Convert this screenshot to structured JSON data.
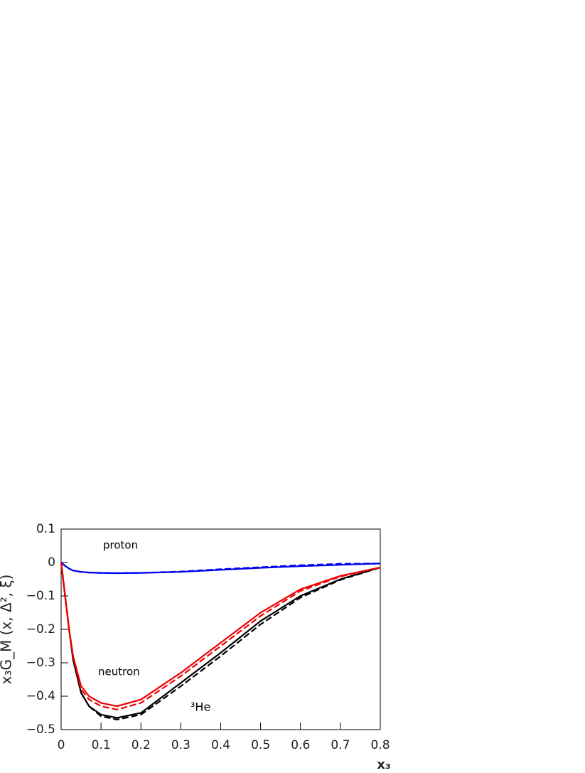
{
  "chart_data": {
    "type": "line",
    "x_label": "x₃",
    "y_label": "x₃G_M (x, Δ², ξ)",
    "annotations": [
      "proton",
      "neutron",
      "³He"
    ],
    "x": [
      0,
      0.01,
      0.02,
      0.03,
      0.05,
      0.07,
      0.1,
      0.14,
      0.2,
      0.3,
      0.4,
      0.5,
      0.6,
      0.7,
      0.8
    ],
    "series": [
      {
        "color": "#0000ee",
        "dash": false,
        "values": [
          0,
          -0.01,
          -0.018,
          -0.024,
          -0.028,
          -0.03,
          -0.031,
          -0.032,
          -0.031,
          -0.028,
          -0.022,
          -0.016,
          -0.011,
          -0.007,
          -0.003
        ]
      },
      {
        "color": "#0000ee",
        "dash": true,
        "values": [
          0,
          -0.01,
          -0.018,
          -0.024,
          -0.028,
          -0.03,
          -0.031,
          -0.032,
          -0.031,
          -0.027,
          -0.02,
          -0.014,
          -0.008,
          -0.004,
          -0.003
        ]
      },
      {
        "color": "#000000",
        "dash": false,
        "values": [
          0,
          -0.1,
          -0.2,
          -0.29,
          -0.39,
          -0.43,
          -0.455,
          -0.465,
          -0.45,
          -0.36,
          -0.27,
          -0.175,
          -0.1,
          -0.05,
          -0.015
        ]
      },
      {
        "color": "#000000",
        "dash": true,
        "values": [
          0,
          -0.1,
          -0.2,
          -0.29,
          -0.39,
          -0.43,
          -0.46,
          -0.47,
          -0.455,
          -0.37,
          -0.28,
          -0.185,
          -0.105,
          -0.052,
          -0.015
        ]
      },
      {
        "color": "#ee0000",
        "dash": false,
        "values": [
          0,
          -0.1,
          -0.2,
          -0.28,
          -0.37,
          -0.4,
          -0.42,
          -0.43,
          -0.41,
          -0.33,
          -0.24,
          -0.15,
          -0.08,
          -0.04,
          -0.015
        ]
      },
      {
        "color": "#ee0000",
        "dash": true,
        "values": [
          0,
          -0.1,
          -0.2,
          -0.28,
          -0.38,
          -0.41,
          -0.43,
          -0.44,
          -0.42,
          -0.34,
          -0.25,
          -0.16,
          -0.085,
          -0.042,
          -0.015
        ]
      }
    ],
    "xlim": [
      0,
      0.8
    ],
    "xticks": [
      0,
      0.1,
      0.2,
      0.3,
      0.4,
      0.5,
      0.6,
      0.7,
      0.8
    ],
    "ylim": [
      -0.5,
      0.1
    ],
    "yticks": [
      {
        "value": -0.5,
        "label": "−0.5"
      },
      {
        "value": -0.4,
        "label": "−0.4"
      },
      {
        "value": -0.3,
        "label": "−0.3"
      },
      {
        "value": -0.2,
        "label": "−0.2"
      },
      {
        "value": -0.1,
        "label": "−0.1"
      },
      0,
      0.1
    ]
  }
}
